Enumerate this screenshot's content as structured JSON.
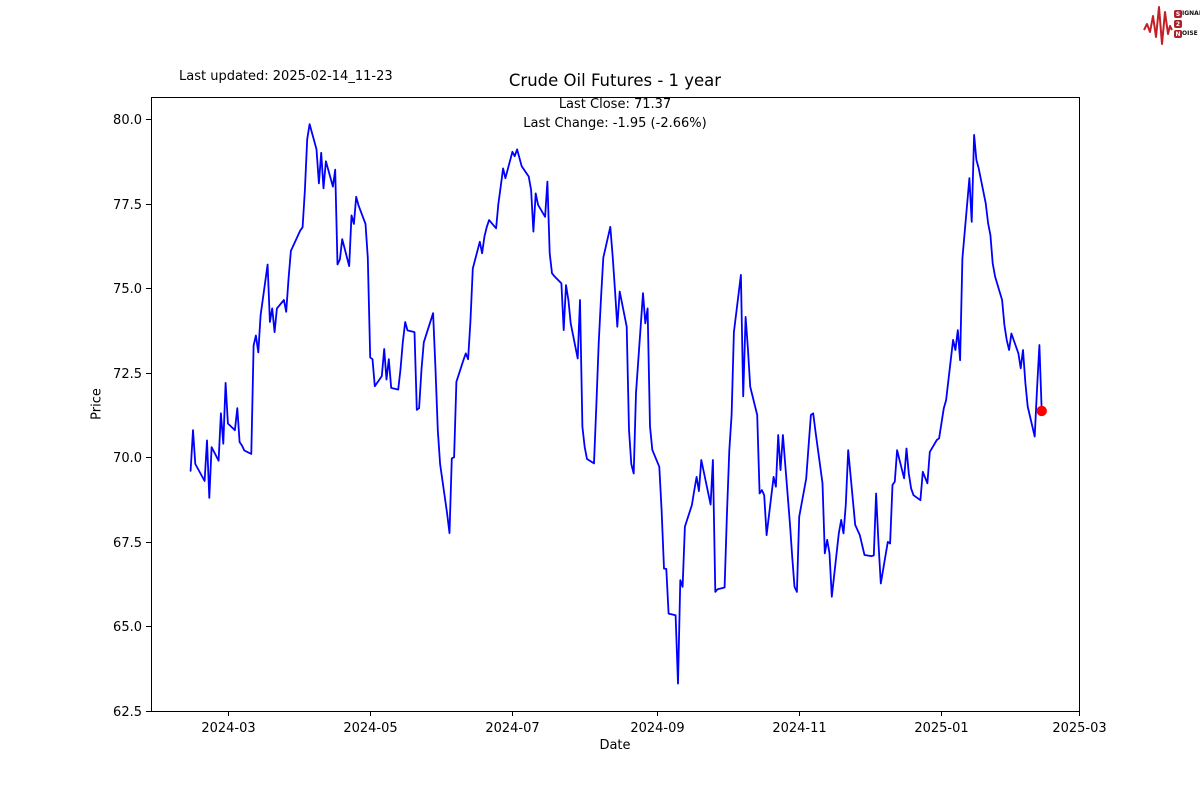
{
  "logo": {
    "line1_initial": "S",
    "line1_rest": "IGNAL",
    "line2_initial": "2",
    "line2_rest": "",
    "line3_initial": "N",
    "line3_rest": "OISE",
    "box_color": "#a8232b",
    "wave_color": "#c32026"
  },
  "header": {
    "last_updated": "Last updated: 2025-02-14_11-23"
  },
  "chart_data": {
    "type": "line",
    "title": "Crude Oil Futures - 1 year",
    "xlabel": "Date",
    "ylabel": "Price",
    "annotations": {
      "last_close_text": "Last Close: 71.37",
      "last_change_text": "Last Change: -1.95 (-2.66%)"
    },
    "last_close": 71.37,
    "last_change": -1.95,
    "last_change_pct": -2.66,
    "line_color": "#0000ff",
    "last_point_color": "#ff0000",
    "grid": false,
    "legend": "none",
    "x_axis": {
      "start": "2024-01-28",
      "end": "2025-03-01",
      "ticks": [
        {
          "date": "2024-03-01",
          "label": "2024-03"
        },
        {
          "date": "2024-05-01",
          "label": "2024-05"
        },
        {
          "date": "2024-07-01",
          "label": "2024-07"
        },
        {
          "date": "2024-09-01",
          "label": "2024-09"
        },
        {
          "date": "2024-11-01",
          "label": "2024-11"
        },
        {
          "date": "2025-01-01",
          "label": "2025-01"
        },
        {
          "date": "2025-03-01",
          "label": "2025-03"
        }
      ]
    },
    "y_axis": {
      "min": 62.5,
      "max": 80.65,
      "ticks": [
        {
          "value": 80.0,
          "label": "80.0"
        },
        {
          "value": 77.5,
          "label": "77.5"
        },
        {
          "value": 75.0,
          "label": "75.0"
        },
        {
          "value": 72.5,
          "label": "72.5"
        },
        {
          "value": 70.0,
          "label": "70.0"
        },
        {
          "value": 67.5,
          "label": "67.5"
        },
        {
          "value": 65.0,
          "label": "65.0"
        },
        {
          "value": 62.5,
          "label": "62.5"
        }
      ]
    },
    "series": [
      [
        "2024-02-14",
        69.6
      ],
      [
        "2024-02-15",
        70.8
      ],
      [
        "2024-02-16",
        69.8
      ],
      [
        "2024-02-20",
        69.3
      ],
      [
        "2024-02-21",
        70.5
      ],
      [
        "2024-02-22",
        68.8
      ],
      [
        "2024-02-23",
        70.3
      ],
      [
        "2024-02-26",
        69.9
      ],
      [
        "2024-02-27",
        71.3
      ],
      [
        "2024-02-28",
        70.4
      ],
      [
        "2024-02-29",
        72.2
      ],
      [
        "2024-03-01",
        71.0
      ],
      [
        "2024-03-04",
        70.8
      ],
      [
        "2024-03-05",
        71.45
      ],
      [
        "2024-03-06",
        70.45
      ],
      [
        "2024-03-07",
        70.35
      ],
      [
        "2024-03-08",
        70.2
      ],
      [
        "2024-03-11",
        70.1
      ],
      [
        "2024-03-12",
        73.3
      ],
      [
        "2024-03-13",
        73.6
      ],
      [
        "2024-03-14",
        73.1
      ],
      [
        "2024-03-15",
        74.2
      ],
      [
        "2024-03-18",
        75.7
      ],
      [
        "2024-03-19",
        74.0
      ],
      [
        "2024-03-20",
        74.4
      ],
      [
        "2024-03-21",
        73.7
      ],
      [
        "2024-03-22",
        74.4
      ],
      [
        "2024-03-25",
        74.65
      ],
      [
        "2024-03-26",
        74.3
      ],
      [
        "2024-03-27",
        75.3
      ],
      [
        "2024-03-28",
        76.1
      ],
      [
        "2024-04-01",
        76.7
      ],
      [
        "2024-04-02",
        76.8
      ],
      [
        "2024-04-03",
        77.9
      ],
      [
        "2024-04-04",
        79.4
      ],
      [
        "2024-04-05",
        79.85
      ],
      [
        "2024-04-08",
        79.1
      ],
      [
        "2024-04-09",
        78.1
      ],
      [
        "2024-04-10",
        79.0
      ],
      [
        "2024-04-11",
        77.95
      ],
      [
        "2024-04-12",
        78.75
      ],
      [
        "2024-04-15",
        78.0
      ],
      [
        "2024-04-16",
        78.5
      ],
      [
        "2024-04-17",
        75.7
      ],
      [
        "2024-04-18",
        75.85
      ],
      [
        "2024-04-19",
        76.45
      ],
      [
        "2024-04-22",
        75.65
      ],
      [
        "2024-04-23",
        77.15
      ],
      [
        "2024-04-24",
        76.9
      ],
      [
        "2024-04-25",
        77.7
      ],
      [
        "2024-04-26",
        77.45
      ],
      [
        "2024-04-29",
        76.9
      ],
      [
        "2024-04-30",
        75.9
      ],
      [
        "2024-05-01",
        72.95
      ],
      [
        "2024-05-02",
        72.9
      ],
      [
        "2024-05-03",
        72.1
      ],
      [
        "2024-05-06",
        72.4
      ],
      [
        "2024-05-07",
        73.2
      ],
      [
        "2024-05-08",
        72.3
      ],
      [
        "2024-05-09",
        72.9
      ],
      [
        "2024-05-10",
        72.05
      ],
      [
        "2024-05-13",
        72.0
      ],
      [
        "2024-05-14",
        72.6
      ],
      [
        "2024-05-15",
        73.4
      ],
      [
        "2024-05-16",
        74.0
      ],
      [
        "2024-05-17",
        73.75
      ],
      [
        "2024-05-20",
        73.7
      ],
      [
        "2024-05-21",
        71.4
      ],
      [
        "2024-05-22",
        71.45
      ],
      [
        "2024-05-23",
        72.6
      ],
      [
        "2024-05-24",
        73.4
      ],
      [
        "2024-05-28",
        74.26
      ],
      [
        "2024-05-29",
        72.6
      ],
      [
        "2024-05-30",
        70.8
      ],
      [
        "2024-05-31",
        69.8
      ],
      [
        "2024-06-03",
        68.34
      ],
      [
        "2024-06-04",
        67.76
      ],
      [
        "2024-06-05",
        69.97
      ],
      [
        "2024-06-06",
        70.0
      ],
      [
        "2024-06-07",
        72.23
      ],
      [
        "2024-06-10",
        72.87
      ],
      [
        "2024-06-11",
        73.07
      ],
      [
        "2024-06-12",
        72.9
      ],
      [
        "2024-06-13",
        74.0
      ],
      [
        "2024-06-14",
        75.58
      ],
      [
        "2024-06-17",
        76.37
      ],
      [
        "2024-06-18",
        76.03
      ],
      [
        "2024-06-19",
        76.52
      ],
      [
        "2024-06-20",
        76.81
      ],
      [
        "2024-06-21",
        77.01
      ],
      [
        "2024-06-24",
        76.77
      ],
      [
        "2024-06-25",
        77.5
      ],
      [
        "2024-06-26",
        78.0
      ],
      [
        "2024-06-27",
        78.54
      ],
      [
        "2024-06-28",
        78.25
      ],
      [
        "2024-07-01",
        79.03
      ],
      [
        "2024-07-02",
        78.9
      ],
      [
        "2024-07-03",
        79.1
      ],
      [
        "2024-07-05",
        78.6
      ],
      [
        "2024-07-08",
        78.3
      ],
      [
        "2024-07-09",
        77.9
      ],
      [
        "2024-07-10",
        76.67
      ],
      [
        "2024-07-11",
        77.8
      ],
      [
        "2024-07-12",
        77.46
      ],
      [
        "2024-07-15",
        77.11
      ],
      [
        "2024-07-16",
        78.15
      ],
      [
        "2024-07-17",
        76.03
      ],
      [
        "2024-07-18",
        75.44
      ],
      [
        "2024-07-19",
        75.35
      ],
      [
        "2024-07-22",
        75.14
      ],
      [
        "2024-07-23",
        73.76
      ],
      [
        "2024-07-24",
        75.09
      ],
      [
        "2024-07-25",
        74.65
      ],
      [
        "2024-07-26",
        73.96
      ],
      [
        "2024-07-29",
        72.92
      ],
      [
        "2024-07-30",
        74.65
      ],
      [
        "2024-07-31",
        70.9
      ],
      [
        "2024-08-01",
        70.3
      ],
      [
        "2024-08-02",
        69.95
      ],
      [
        "2024-08-05",
        69.82
      ],
      [
        "2024-08-06",
        71.5
      ],
      [
        "2024-08-07",
        73.37
      ],
      [
        "2024-08-08",
        74.7
      ],
      [
        "2024-08-09",
        75.9
      ],
      [
        "2024-08-12",
        76.81
      ],
      [
        "2024-08-13",
        75.93
      ],
      [
        "2024-08-14",
        74.94
      ],
      [
        "2024-08-15",
        73.86
      ],
      [
        "2024-08-16",
        74.9
      ],
      [
        "2024-08-19",
        73.86
      ],
      [
        "2024-08-20",
        70.81
      ],
      [
        "2024-08-21",
        69.8
      ],
      [
        "2024-08-22",
        69.52
      ],
      [
        "2024-08-23",
        71.9
      ],
      [
        "2024-08-26",
        74.85
      ],
      [
        "2024-08-27",
        73.96
      ],
      [
        "2024-08-28",
        74.4
      ],
      [
        "2024-08-29",
        70.91
      ],
      [
        "2024-08-30",
        70.22
      ],
      [
        "2024-09-02",
        69.72
      ],
      [
        "2024-09-03",
        68.44
      ],
      [
        "2024-09-04",
        66.71
      ],
      [
        "2024-09-05",
        66.7
      ],
      [
        "2024-09-06",
        65.38
      ],
      [
        "2024-09-09",
        65.33
      ],
      [
        "2024-09-10",
        63.31
      ],
      [
        "2024-09-11",
        66.37
      ],
      [
        "2024-09-12",
        66.17
      ],
      [
        "2024-09-13",
        67.95
      ],
      [
        "2024-09-16",
        68.59
      ],
      [
        "2024-09-17",
        69.03
      ],
      [
        "2024-09-18",
        69.42
      ],
      [
        "2024-09-19",
        69.0
      ],
      [
        "2024-09-20",
        69.92
      ],
      [
        "2024-09-23",
        68.93
      ],
      [
        "2024-09-24",
        68.6
      ],
      [
        "2024-09-25",
        69.92
      ],
      [
        "2024-09-26",
        66.02
      ],
      [
        "2024-09-27",
        66.1
      ],
      [
        "2024-09-30",
        66.15
      ],
      [
        "2024-10-01",
        68.29
      ],
      [
        "2024-10-02",
        70.2
      ],
      [
        "2024-10-03",
        71.25
      ],
      [
        "2024-10-04",
        73.7
      ],
      [
        "2024-10-07",
        75.39
      ],
      [
        "2024-10-08",
        71.8
      ],
      [
        "2024-10-09",
        74.15
      ],
      [
        "2024-10-10",
        73.22
      ],
      [
        "2024-10-11",
        72.09
      ],
      [
        "2024-10-14",
        71.25
      ],
      [
        "2024-10-15",
        68.93
      ],
      [
        "2024-10-16",
        69.03
      ],
      [
        "2024-10-17",
        68.88
      ],
      [
        "2024-10-18",
        67.7
      ],
      [
        "2024-10-21",
        69.42
      ],
      [
        "2024-10-22",
        69.13
      ],
      [
        "2024-10-23",
        70.66
      ],
      [
        "2024-10-24",
        69.62
      ],
      [
        "2024-10-25",
        70.66
      ],
      [
        "2024-10-28",
        68.05
      ],
      [
        "2024-10-29",
        67.06
      ],
      [
        "2024-10-30",
        66.17
      ],
      [
        "2024-10-31",
        66.02
      ],
      [
        "2024-11-01",
        68.24
      ],
      [
        "2024-11-04",
        69.37
      ],
      [
        "2024-11-05",
        70.3
      ],
      [
        "2024-11-06",
        71.25
      ],
      [
        "2024-11-07",
        71.3
      ],
      [
        "2024-11-08",
        70.76
      ],
      [
        "2024-11-11",
        69.23
      ],
      [
        "2024-11-12",
        67.16
      ],
      [
        "2024-11-13",
        67.56
      ],
      [
        "2024-11-14",
        67.16
      ],
      [
        "2024-11-15",
        65.88
      ],
      [
        "2024-11-18",
        67.75
      ],
      [
        "2024-11-19",
        68.15
      ],
      [
        "2024-11-20",
        67.75
      ],
      [
        "2024-11-21",
        68.6
      ],
      [
        "2024-11-22",
        70.21
      ],
      [
        "2024-11-25",
        68.0
      ],
      [
        "2024-11-26",
        67.85
      ],
      [
        "2024-11-27",
        67.7
      ],
      [
        "2024-11-29",
        67.11
      ],
      [
        "2024-12-02",
        67.08
      ],
      [
        "2024-12-03",
        67.1
      ],
      [
        "2024-12-04",
        68.93
      ],
      [
        "2024-12-05",
        67.45
      ],
      [
        "2024-12-06",
        66.27
      ],
      [
        "2024-12-09",
        67.5
      ],
      [
        "2024-12-10",
        67.45
      ],
      [
        "2024-12-11",
        69.18
      ],
      [
        "2024-12-12",
        69.28
      ],
      [
        "2024-12-13",
        70.21
      ],
      [
        "2024-12-16",
        69.38
      ],
      [
        "2024-12-17",
        70.26
      ],
      [
        "2024-12-18",
        69.52
      ],
      [
        "2024-12-19",
        69.08
      ],
      [
        "2024-12-20",
        68.88
      ],
      [
        "2024-12-23",
        68.73
      ],
      [
        "2024-12-24",
        69.57
      ],
      [
        "2024-12-26",
        69.23
      ],
      [
        "2024-12-27",
        70.16
      ],
      [
        "2024-12-30",
        70.51
      ],
      [
        "2024-12-31",
        70.56
      ],
      [
        "2025-01-02",
        71.45
      ],
      [
        "2025-01-03",
        71.69
      ],
      [
        "2025-01-06",
        73.47
      ],
      [
        "2025-01-07",
        73.17
      ],
      [
        "2025-01-08",
        73.76
      ],
      [
        "2025-01-09",
        72.87
      ],
      [
        "2025-01-10",
        75.88
      ],
      [
        "2025-01-13",
        78.25
      ],
      [
        "2025-01-14",
        76.96
      ],
      [
        "2025-01-15",
        79.53
      ],
      [
        "2025-01-16",
        78.79
      ],
      [
        "2025-01-17",
        78.54
      ],
      [
        "2025-01-20",
        77.51
      ],
      [
        "2025-01-21",
        76.92
      ],
      [
        "2025-01-22",
        76.57
      ],
      [
        "2025-01-23",
        75.73
      ],
      [
        "2025-01-24",
        75.34
      ],
      [
        "2025-01-27",
        74.65
      ],
      [
        "2025-01-28",
        73.91
      ],
      [
        "2025-01-29",
        73.47
      ],
      [
        "2025-01-30",
        73.17
      ],
      [
        "2025-01-31",
        73.66
      ],
      [
        "2025-02-03",
        73.07
      ],
      [
        "2025-02-04",
        72.63
      ],
      [
        "2025-02-05",
        73.17
      ],
      [
        "2025-02-06",
        72.19
      ],
      [
        "2025-02-07",
        71.5
      ],
      [
        "2025-02-10",
        70.61
      ],
      [
        "2025-02-11",
        72.0
      ],
      [
        "2025-02-12",
        73.32
      ],
      [
        "2025-02-13",
        71.37
      ]
    ]
  }
}
